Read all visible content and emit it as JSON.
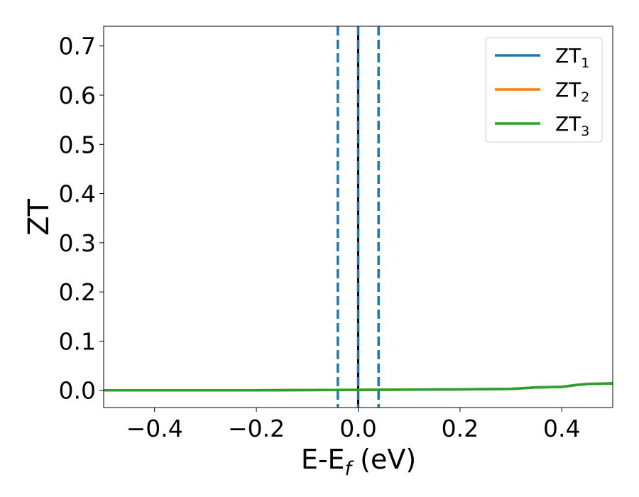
{
  "chart_data": {
    "type": "line",
    "xlabel": "E-E",
    "xlabel_sub": "f",
    "xlabel_unit": " (eV)",
    "ylabel": "ZT",
    "xlim": [
      -0.5,
      0.5
    ],
    "ylim": [
      -0.035,
      0.74
    ],
    "xticks": [
      -0.4,
      -0.2,
      0.0,
      0.2,
      0.4
    ],
    "xtick_labels": [
      "−0.4",
      "−0.2",
      "0.0",
      "0.2",
      "0.4"
    ],
    "yticks": [
      0.0,
      0.1,
      0.2,
      0.3,
      0.4,
      0.5,
      0.6,
      0.7
    ],
    "ytick_labels": [
      "0.0",
      "0.1",
      "0.2",
      "0.3",
      "0.4",
      "0.5",
      "0.6",
      "0.7"
    ],
    "grid": false,
    "legend_position": "top-right",
    "series": [
      {
        "name": "ZT",
        "name_sub": "1",
        "color": "#1f77b4",
        "x": [
          -0.5,
          -0.4,
          -0.3,
          -0.2,
          -0.1,
          0.0,
          0.1,
          0.2,
          0.3,
          0.32,
          0.35,
          0.4,
          0.43,
          0.45,
          0.5
        ],
        "y": [
          0.0,
          0.0,
          0.0,
          0.0,
          0.0005,
          0.001,
          0.0015,
          0.002,
          0.003,
          0.004,
          0.006,
          0.007,
          0.011,
          0.013,
          0.014
        ]
      },
      {
        "name": "ZT",
        "name_sub": "2",
        "color": "#ff7f0e",
        "x": [
          -0.5,
          -0.4,
          -0.3,
          -0.2,
          -0.1,
          0.0,
          0.1,
          0.2,
          0.3,
          0.32,
          0.35,
          0.4,
          0.43,
          0.45,
          0.5
        ],
        "y": [
          0.0,
          0.0,
          0.0,
          0.0,
          0.0005,
          0.001,
          0.0015,
          0.002,
          0.003,
          0.004,
          0.006,
          0.007,
          0.011,
          0.013,
          0.014
        ]
      },
      {
        "name": "ZT",
        "name_sub": "3",
        "color": "#2ca02c",
        "x": [
          -0.5,
          -0.4,
          -0.3,
          -0.2,
          -0.1,
          0.0,
          0.1,
          0.2,
          0.3,
          0.32,
          0.35,
          0.4,
          0.43,
          0.45,
          0.5
        ],
        "y": [
          0.0,
          0.0,
          0.0,
          0.0,
          0.0005,
          0.001,
          0.0015,
          0.002,
          0.003,
          0.004,
          0.006,
          0.007,
          0.011,
          0.013,
          0.014
        ]
      }
    ],
    "vlines": [
      {
        "x": -0.04,
        "style": "dashed",
        "color": "#1f77b4"
      },
      {
        "x": 0.04,
        "style": "dashed",
        "color": "#1f77b4"
      },
      {
        "x": 0.0,
        "style": "solid",
        "color": "#000000"
      },
      {
        "x": 0.0,
        "style": "dashed",
        "color": "#1f77b4"
      }
    ]
  }
}
